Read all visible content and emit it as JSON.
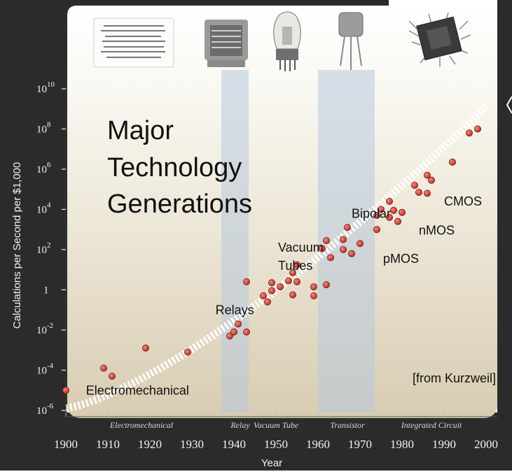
{
  "chart_data": {
    "type": "scatter",
    "title": "Major Technology Generations",
    "title_lines": [
      "Major",
      "Technology",
      "Generations"
    ],
    "xlabel": "Year",
    "ylabel": "Calculations per Second per $1,000",
    "xlim": [
      1900,
      2000
    ],
    "ylim_exponent": [
      -6,
      10
    ],
    "y_scale": "log10",
    "x_ticks": [
      "1900",
      "1910",
      "1920",
      "1930",
      "1940",
      "1950",
      "1960",
      "1970",
      "1980",
      "1990",
      "2000"
    ],
    "y_ticks": [
      {
        "exp": 10,
        "base": "10",
        "sup": "10"
      },
      {
        "exp": 8,
        "base": "10",
        "sup": "8"
      },
      {
        "exp": 6,
        "base": "10",
        "sup": "6"
      },
      {
        "exp": 4,
        "base": "10",
        "sup": "4"
      },
      {
        "exp": 2,
        "base": "10",
        "sup": "2"
      },
      {
        "exp": 0,
        "base": "1",
        "sup": ""
      },
      {
        "exp": -2,
        "base": "10",
        "sup": "-2"
      },
      {
        "exp": -4,
        "base": "10",
        "sup": "-4"
      },
      {
        "exp": -6,
        "base": "10",
        "sup": "-6"
      }
    ],
    "eras": [
      {
        "label": "Electromechanical",
        "center": 1918
      },
      {
        "label": "Relay",
        "center": 1941.5
      },
      {
        "label": "Vacuum Tube",
        "center": 1950
      },
      {
        "label": "Transistor",
        "center": 1967
      },
      {
        "label": "Integrated Circuit",
        "center": 1987
      }
    ],
    "era_bands": [
      [
        1937,
        1943.5
      ],
      [
        1960,
        1973.5
      ]
    ],
    "trend": {
      "x": [
        1900,
        2000
      ],
      "log10_y": [
        -5.9,
        9.1
      ]
    },
    "points": [
      {
        "x": 1900,
        "log10_y": -5.0
      },
      {
        "x": 1909,
        "log10_y": -3.9
      },
      {
        "x": 1911,
        "log10_y": -4.3
      },
      {
        "x": 1919,
        "log10_y": -2.9
      },
      {
        "x": 1929,
        "log10_y": -3.1
      },
      {
        "x": 1939,
        "log10_y": -2.3
      },
      {
        "x": 1940,
        "log10_y": -2.1
      },
      {
        "x": 1941,
        "log10_y": -1.7
      },
      {
        "x": 1943,
        "log10_y": -2.1
      },
      {
        "x": 1943,
        "log10_y": 0.4
      },
      {
        "x": 1947,
        "log10_y": -0.3
      },
      {
        "x": 1948,
        "log10_y": -0.6
      },
      {
        "x": 1949,
        "log10_y": 0.35
      },
      {
        "x": 1949,
        "log10_y": -0.05
      },
      {
        "x": 1951,
        "log10_y": 0.15
      },
      {
        "x": 1953,
        "log10_y": 0.45
      },
      {
        "x": 1954,
        "log10_y": 0.85
      },
      {
        "x": 1954,
        "log10_y": -0.25
      },
      {
        "x": 1955,
        "log10_y": 1.25
      },
      {
        "x": 1955,
        "log10_y": 0.4
      },
      {
        "x": 1959,
        "log10_y": -0.3
      },
      {
        "x": 1959,
        "log10_y": 0.15
      },
      {
        "x": 1961,
        "log10_y": 2.05
      },
      {
        "x": 1962,
        "log10_y": 0.25
      },
      {
        "x": 1962,
        "log10_y": 2.45
      },
      {
        "x": 1963,
        "log10_y": 1.6
      },
      {
        "x": 1966,
        "log10_y": 2.0
      },
      {
        "x": 1966,
        "log10_y": 2.5
      },
      {
        "x": 1967,
        "log10_y": 3.1
      },
      {
        "x": 1968,
        "log10_y": 1.8
      },
      {
        "x": 1970,
        "log10_y": 2.3
      },
      {
        "x": 1974,
        "log10_y": 3.0
      },
      {
        "x": 1974,
        "log10_y": 3.7
      },
      {
        "x": 1975,
        "log10_y": 4.0
      },
      {
        "x": 1977,
        "log10_y": 4.4
      },
      {
        "x": 1977,
        "log10_y": 3.6
      },
      {
        "x": 1978,
        "log10_y": 3.95
      },
      {
        "x": 1979,
        "log10_y": 3.4
      },
      {
        "x": 1980,
        "log10_y": 3.85
      },
      {
        "x": 1983,
        "log10_y": 5.2
      },
      {
        "x": 1984,
        "log10_y": 4.85
      },
      {
        "x": 1986,
        "log10_y": 4.8
      },
      {
        "x": 1986,
        "log10_y": 5.7
      },
      {
        "x": 1987,
        "log10_y": 5.45
      },
      {
        "x": 1992,
        "log10_y": 6.35
      },
      {
        "x": 1996,
        "log10_y": 7.8
      },
      {
        "x": 1998,
        "log10_y": 8.0
      }
    ],
    "annotations": [
      {
        "text": "Electromechanical",
        "x": 1904.8,
        "log10_y": -5.0
      },
      {
        "text": "Relays",
        "x": 1935.6,
        "log10_y": -1.0
      },
      {
        "text": "Vacuum",
        "x": 1950.5,
        "log10_y": 2.1
      },
      {
        "text": "Tubes",
        "x": 1950.5,
        "log10_y": 1.2
      },
      {
        "text": "Bipolar",
        "x": 1968.0,
        "log10_y": 3.8
      },
      {
        "text": "CMOS",
        "x": 1990.0,
        "log10_y": 4.4
      },
      {
        "text": "nMOS",
        "x": 1984.0,
        "log10_y": 2.95
      },
      {
        "text": "pMOS",
        "x": 1975.5,
        "log10_y": 1.55
      },
      {
        "text": "[from Kurzweil]",
        "x": 1982.5,
        "log10_y": -4.4
      }
    ],
    "colors": {
      "point": "#c33a2e",
      "band": "#b8c8dc",
      "bg": "#e8e2d2",
      "frame": "#2b2b2b"
    }
  }
}
